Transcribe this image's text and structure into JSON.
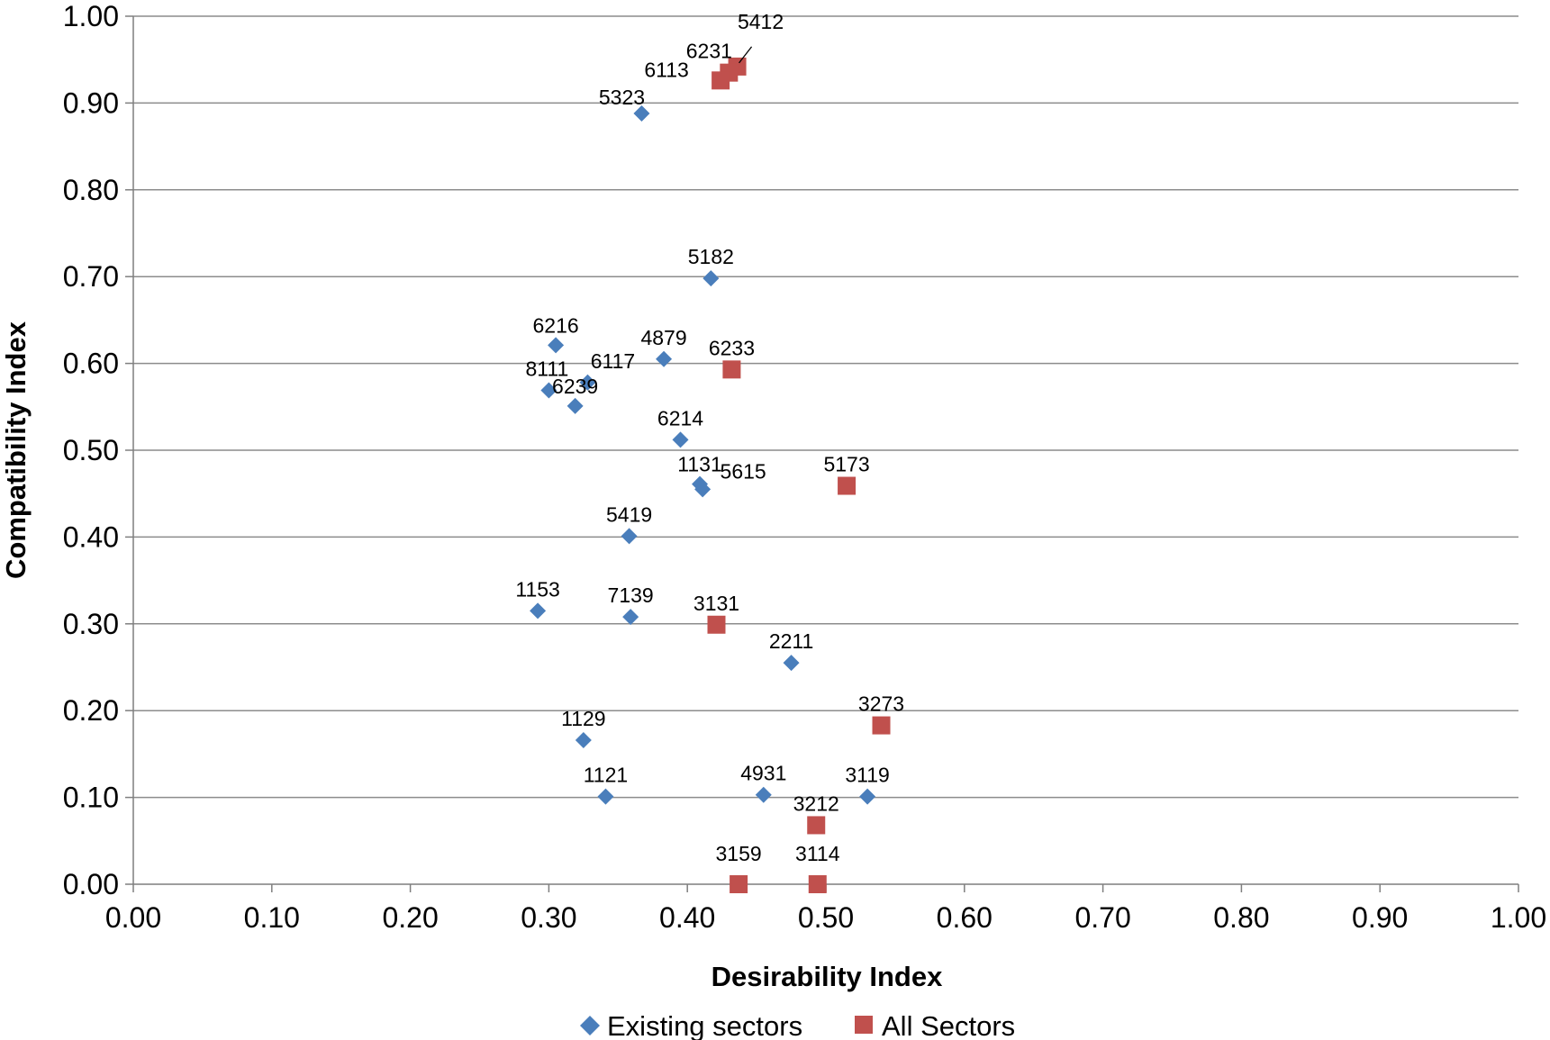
{
  "chart_data": {
    "type": "scatter",
    "xlabel": "Desirability Index",
    "ylabel": "Compatibility Index",
    "xlim": [
      0,
      1
    ],
    "ylim": [
      0,
      1
    ],
    "x_ticks": [
      "0.00",
      "0.10",
      "0.20",
      "0.30",
      "0.40",
      "0.50",
      "0.60",
      "0.70",
      "0.80",
      "0.90",
      "1.00"
    ],
    "y_ticks": [
      "0.00",
      "0.10",
      "0.20",
      "0.30",
      "0.40",
      "0.50",
      "0.60",
      "0.70",
      "0.80",
      "0.90",
      "1.00"
    ],
    "grid": "horizontal",
    "legend_position": "bottom",
    "series": [
      {
        "name": "Existing sectors",
        "marker": "diamond",
        "color": "#4a7ebb",
        "points": [
          {
            "label": "5323",
            "x": 0.367,
            "y": 0.888
          },
          {
            "label": "5182",
            "x": 0.417,
            "y": 0.698
          },
          {
            "label": "6216",
            "x": 0.305,
            "y": 0.621
          },
          {
            "label": "4879",
            "x": 0.383,
            "y": 0.605
          },
          {
            "label": "6117",
            "x": 0.328,
            "y": 0.578
          },
          {
            "label": "8111",
            "x": 0.3,
            "y": 0.569
          },
          {
            "label": "6239",
            "x": 0.319,
            "y": 0.551
          },
          {
            "label": "6214",
            "x": 0.395,
            "y": 0.512
          },
          {
            "label": "1131",
            "x": 0.409,
            "y": 0.461
          },
          {
            "label": "5615",
            "x": 0.411,
            "y": 0.455
          },
          {
            "label": "5419",
            "x": 0.358,
            "y": 0.401
          },
          {
            "label": "1153",
            "x": 0.292,
            "y": 0.315
          },
          {
            "label": "7139",
            "x": 0.359,
            "y": 0.308
          },
          {
            "label": "2211",
            "x": 0.475,
            "y": 0.255
          },
          {
            "label": "1129",
            "x": 0.325,
            "y": 0.166
          },
          {
            "label": "1121",
            "x": 0.341,
            "y": 0.101
          },
          {
            "label": "4931",
            "x": 0.455,
            "y": 0.103
          },
          {
            "label": "3119",
            "x": 0.53,
            "y": 0.101
          }
        ]
      },
      {
        "name": "All Sectors",
        "marker": "square",
        "color": "#c0504d",
        "points": [
          {
            "label": "5412",
            "x": 0.436,
            "y": 0.942
          },
          {
            "label": "6231",
            "x": 0.43,
            "y": 0.935
          },
          {
            "label": "6113",
            "x": 0.424,
            "y": 0.926
          },
          {
            "label": "6233",
            "x": 0.432,
            "y": 0.593
          },
          {
            "label": "5173",
            "x": 0.515,
            "y": 0.459
          },
          {
            "label": "3131",
            "x": 0.421,
            "y": 0.299
          },
          {
            "label": "3273",
            "x": 0.54,
            "y": 0.183
          },
          {
            "label": "3212",
            "x": 0.493,
            "y": 0.068
          },
          {
            "label": "3159",
            "x": 0.437,
            "y": 0.0
          },
          {
            "label": "3114",
            "x": 0.494,
            "y": 0.0
          }
        ]
      }
    ]
  }
}
